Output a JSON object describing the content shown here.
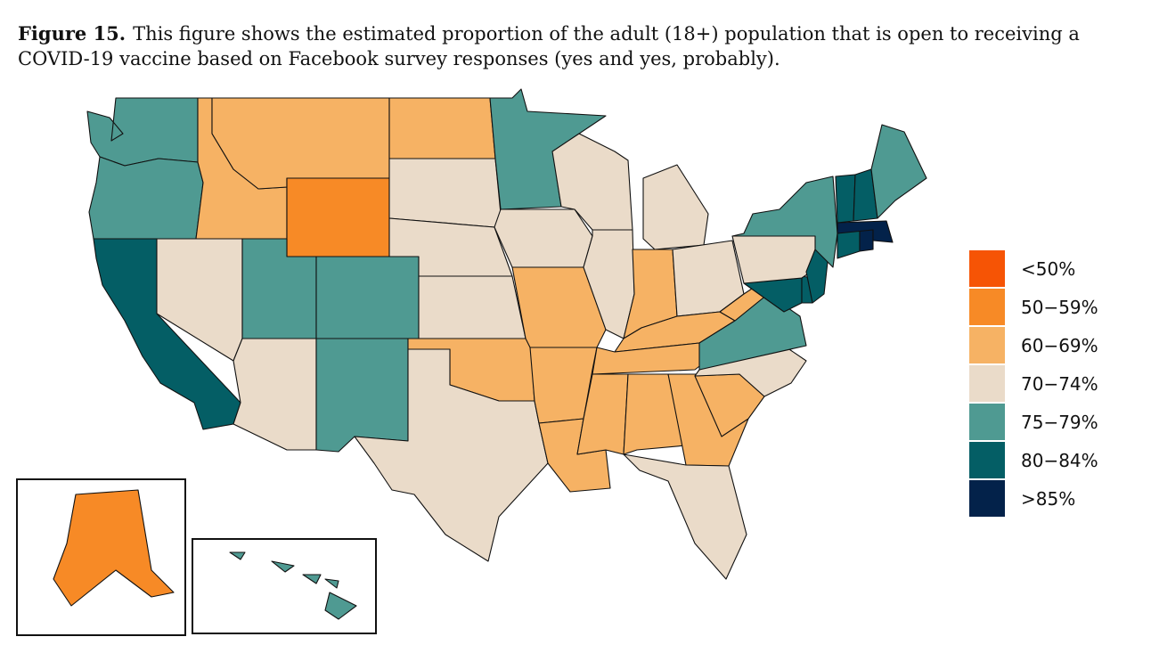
{
  "caption": {
    "lead": "Figure 15.",
    "text": "This figure shows the estimated proportion of the adult (18+) population that is open to receiving a COVID-19 vaccine based on Facebook survey responses (yes and yes, probably)."
  },
  "legend": {
    "items": [
      {
        "key": "lt50",
        "label": "<50%",
        "color": "#f65405"
      },
      {
        "key": "50_59",
        "label": "50−59%",
        "color": "#f78a26"
      },
      {
        "key": "60_69",
        "label": "60−69%",
        "color": "#f6b264"
      },
      {
        "key": "70_74",
        "label": "70−74%",
        "color": "#eadbc9"
      },
      {
        "key": "75_79",
        "label": "75−79%",
        "color": "#4f9a92"
      },
      {
        "key": "80_84",
        "label": "80−84%",
        "color": "#045e65"
      },
      {
        "key": "gt85",
        "label": ">85%",
        "color": "#03224a"
      }
    ]
  },
  "map_data": {
    "states": {
      "WA": "75_79",
      "OR": "75_79",
      "CA": "80_84",
      "NV": "70_74",
      "ID": "60_69",
      "MT": "60_69",
      "WY": "50_59",
      "UT": "75_79",
      "CO": "75_79",
      "AZ": "70_74",
      "NM": "75_79",
      "ND": "60_69",
      "SD": "70_74",
      "NE": "70_74",
      "KS": "70_74",
      "OK": "60_69",
      "TX": "70_74",
      "MN": "75_79",
      "IA": "70_74",
      "MO": "60_69",
      "AR": "60_69",
      "LA": "60_69",
      "WI": "70_74",
      "IL": "70_74",
      "MI": "70_74",
      "IN": "60_69",
      "OH": "70_74",
      "KY": "60_69",
      "TN": "60_69",
      "MS": "60_69",
      "AL": "60_69",
      "GA": "60_69",
      "FL": "70_74",
      "SC": "60_69",
      "NC": "70_74",
      "VA": "75_79",
      "WV": "60_69",
      "MD": "80_84",
      "DE": "80_84",
      "PA": "70_74",
      "NJ": "80_84",
      "NY": "75_79",
      "CT": "80_84",
      "RI": "gt85",
      "MA": "gt85",
      "VT": "80_84",
      "NH": "80_84",
      "ME": "75_79",
      "AK": "50_59",
      "HI": "75_79"
    }
  }
}
